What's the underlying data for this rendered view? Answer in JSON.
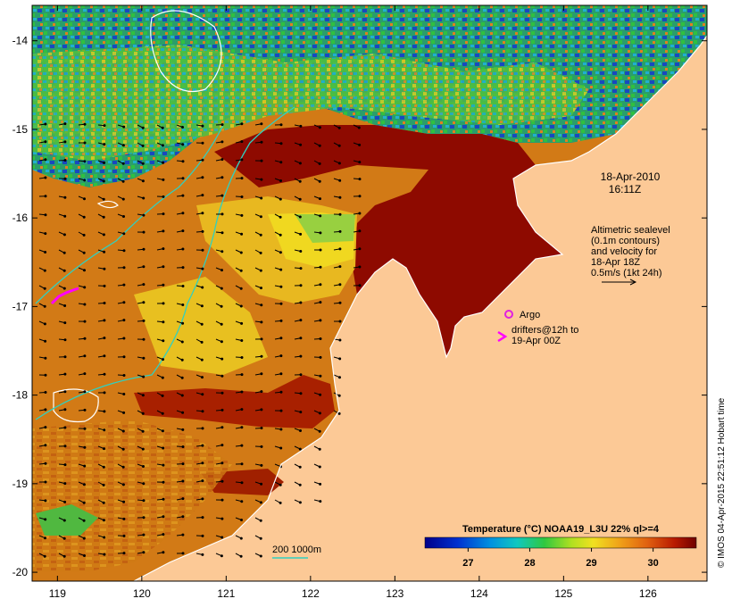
{
  "map": {
    "lon_ticks": [
      "119",
      "120",
      "121",
      "122",
      "123",
      "124",
      "125",
      "126"
    ],
    "lat_ticks": [
      "-14",
      "-15",
      "-16",
      "-17",
      "-18",
      "-19",
      "-20"
    ],
    "lon_range": [
      118.7,
      126.7
    ],
    "lat_range": [
      -13.6,
      -20.1
    ]
  },
  "timestamp": {
    "date": "18-Apr-2010",
    "time": "16:11Z"
  },
  "sealevel_note": {
    "line1": "Altimetric sealevel",
    "line2": "(0.1m contours)",
    "line3": "and velocity for",
    "line4": "18-Apr 18Z",
    "line5": "0.5m/s (1kt 24h)"
  },
  "legend": {
    "argo_label": "Argo",
    "drifters_line1": "drifters@12h to",
    "drifters_line2": "19-Apr 00Z",
    "argo_color": "#e020e0",
    "drifter_color": "#ff00ff"
  },
  "bathymetry_legend": {
    "label": "200  1000m",
    "color": "#30d0c0"
  },
  "colorbar": {
    "title": "Temperature (°C) NOAA19_L3U 22% ql>=4",
    "ticks": [
      "27",
      "28",
      "29",
      "30"
    ],
    "range": [
      26.3,
      30.7
    ]
  },
  "credit": "© IMOS 04-Apr-2015 22:51:12 Hobart time",
  "colors": {
    "land": "#fcc996",
    "hot": "#8e0a00",
    "warm": "#cf6a10",
    "mid": "#e5a020",
    "yellow": "#f0d820",
    "green": "#40c050",
    "cyan": "#20b0d0",
    "blue": "#1840c0"
  }
}
